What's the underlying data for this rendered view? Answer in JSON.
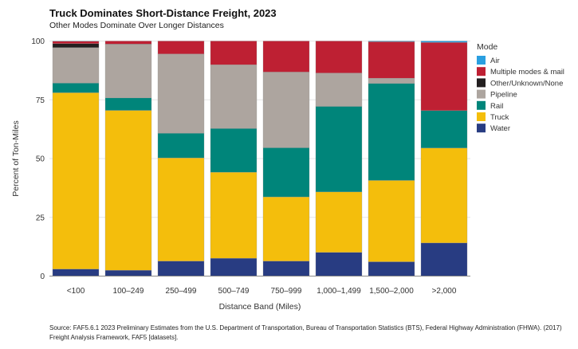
{
  "chart_data": {
    "type": "bar",
    "stacked": true,
    "title": "Truck Dominates Short-Distance Freight, 2023",
    "subtitle": "Other Modes Dominate Over Longer Distances",
    "xlabel": "Distance Band (Miles)",
    "ylabel": "Percent of Ton-Miles",
    "ylim": [
      0,
      100
    ],
    "yticks": [
      0,
      25,
      50,
      75,
      100
    ],
    "grid": true,
    "legend_title": "Mode",
    "legend_placement": "right",
    "categories": [
      "<100",
      "100–249",
      "250–499",
      "500–749",
      "750–999",
      "1,000–1,499",
      "1,500–2,000",
      ">2,000"
    ],
    "series": [
      {
        "name": "Water",
        "color": "#283C82",
        "values": [
          3.0,
          2.5,
          6.4,
          7.6,
          6.4,
          10.1,
          6.1,
          14.1
        ]
      },
      {
        "name": "Truck",
        "color": "#F4BE0C",
        "values": [
          75.0,
          68.0,
          43.9,
          36.6,
          27.3,
          25.7,
          34.6,
          40.4
        ]
      },
      {
        "name": "Rail",
        "color": "#00857A",
        "values": [
          4.1,
          5.3,
          10.5,
          18.6,
          20.9,
          36.4,
          41.3,
          15.9
        ]
      },
      {
        "name": "Pipeline",
        "color": "#ADA59F",
        "values": [
          15.1,
          22.8,
          33.7,
          27.1,
          32.2,
          14.2,
          2.2,
          0.0
        ]
      },
      {
        "name": "Other/Unknown/None",
        "color": "#231F20",
        "values": [
          1.7,
          0.1,
          0.0,
          0.0,
          0.0,
          0.0,
          0.0,
          0.0
        ]
      },
      {
        "name": "Multiple modes & mail",
        "color": "#BE2033",
        "values": [
          1.0,
          1.3,
          5.5,
          10.1,
          13.2,
          13.6,
          15.5,
          29.0
        ]
      },
      {
        "name": "Air",
        "color": "#2A9FE0",
        "values": [
          0.1,
          0.0,
          0.0,
          0.0,
          0.0,
          0.0,
          0.3,
          0.6
        ]
      }
    ],
    "legend_order": [
      "Air",
      "Multiple modes & mail",
      "Other/Unknown/None",
      "Pipeline",
      "Rail",
      "Truck",
      "Water"
    ],
    "source": "Source: FAF5.6.1 2023 Preliminary Estimates from the U.S. Department of Transportation, Bureau of Transportation Statistics (BTS), Federal Highway Administration (FHWA). (2017) Freight Analysis Framework, FAF5 [datasets]."
  }
}
